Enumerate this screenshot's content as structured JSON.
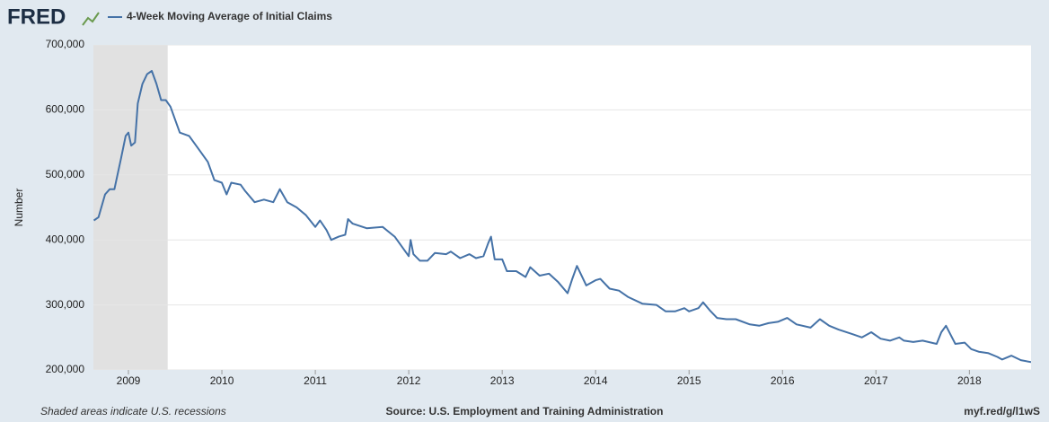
{
  "brand": "FRED",
  "chart_data": {
    "type": "line",
    "ylabel": "Number",
    "note": "Shaded areas indicate U.S. recessions",
    "source": "Source: U.S. Employment and Training Administration",
    "link": "myf.red/g/l1wS",
    "xlim": [
      2008.625,
      2018.66
    ],
    "xticks": [
      2009,
      2010,
      2011,
      2012,
      2013,
      2014,
      2015,
      2016,
      2017,
      2018
    ],
    "ylim": [
      200000,
      700000
    ],
    "yticks": [
      {
        "value": 200000,
        "label": "200,000"
      },
      {
        "value": 300000,
        "label": "300,000"
      },
      {
        "value": 400000,
        "label": "400,000"
      },
      {
        "value": 500000,
        "label": "500,000"
      },
      {
        "value": 600000,
        "label": "600,000"
      },
      {
        "value": 700000,
        "label": "700,000"
      }
    ],
    "grid": true,
    "recessions": [
      {
        "start": 2007.92,
        "end": 2009.42,
        "color": "#e1e1e1"
      }
    ],
    "x": [
      2008.63,
      2008.68,
      2008.75,
      2008.8,
      2008.85,
      2008.92,
      2008.97,
      2009.0,
      2009.03,
      2009.07,
      2009.1,
      2009.15,
      2009.2,
      2009.25,
      2009.3,
      2009.35,
      2009.4,
      2009.45,
      2009.5,
      2009.55,
      2009.65,
      2009.75,
      2009.85,
      2009.92,
      2010.0,
      2010.05,
      2010.1,
      2010.2,
      2010.25,
      2010.35,
      2010.45,
      2010.55,
      2010.62,
      2010.7,
      2010.8,
      2010.9,
      2011.0,
      2011.05,
      2011.12,
      2011.17,
      2011.25,
      2011.32,
      2011.35,
      2011.4,
      2011.55,
      2011.72,
      2011.85,
      2011.95,
      2012.0,
      2012.02,
      2012.05,
      2012.12,
      2012.2,
      2012.28,
      2012.4,
      2012.45,
      2012.55,
      2012.65,
      2012.72,
      2012.8,
      2012.85,
      2012.88,
      2012.92,
      2013.0,
      2013.05,
      2013.15,
      2013.25,
      2013.3,
      2013.4,
      2013.5,
      2013.6,
      2013.7,
      2013.75,
      2013.8,
      2013.9,
      2014.0,
      2014.05,
      2014.15,
      2014.25,
      2014.35,
      2014.5,
      2014.65,
      2014.75,
      2014.85,
      2014.95,
      2015.0,
      2015.1,
      2015.15,
      2015.22,
      2015.3,
      2015.4,
      2015.5,
      2015.65,
      2015.75,
      2015.85,
      2015.95,
      2016.05,
      2016.15,
      2016.3,
      2016.4,
      2016.5,
      2016.6,
      2016.75,
      2016.85,
      2016.95,
      2017.05,
      2017.15,
      2017.25,
      2017.3,
      2017.4,
      2017.5,
      2017.65,
      2017.7,
      2017.75,
      2017.85,
      2017.95,
      2018.02,
      2018.1,
      2018.2,
      2018.3,
      2018.35,
      2018.45,
      2018.55,
      2018.66
    ],
    "series": [
      {
        "name": "4-Week Moving Average of Initial Claims",
        "color": "#4572a7",
        "values": [
          430000,
          435000,
          470000,
          478000,
          478000,
          525000,
          560000,
          565000,
          545000,
          550000,
          610000,
          640000,
          655000,
          660000,
          640000,
          615000,
          615000,
          605000,
          585000,
          565000,
          560000,
          540000,
          520000,
          492000,
          488000,
          470000,
          488000,
          485000,
          475000,
          458000,
          462000,
          458000,
          478000,
          458000,
          450000,
          438000,
          420000,
          430000,
          415000,
          400000,
          405000,
          408000,
          432000,
          425000,
          418000,
          420000,
          405000,
          385000,
          375000,
          400000,
          378000,
          368000,
          368000,
          380000,
          378000,
          382000,
          372000,
          378000,
          372000,
          375000,
          395000,
          405000,
          370000,
          370000,
          352000,
          352000,
          343000,
          358000,
          345000,
          348000,
          335000,
          318000,
          340000,
          360000,
          330000,
          338000,
          340000,
          325000,
          322000,
          312000,
          302000,
          300000,
          290000,
          290000,
          295000,
          290000,
          295000,
          304000,
          292000,
          280000,
          278000,
          278000,
          270000,
          268000,
          272000,
          274000,
          280000,
          270000,
          265000,
          278000,
          268000,
          262000,
          255000,
          250000,
          258000,
          248000,
          245000,
          250000,
          245000,
          243000,
          245000,
          240000,
          258000,
          268000,
          240000,
          242000,
          232000,
          228000,
          226000,
          220000,
          216000,
          222000,
          215000,
          212000
        ]
      }
    ]
  }
}
